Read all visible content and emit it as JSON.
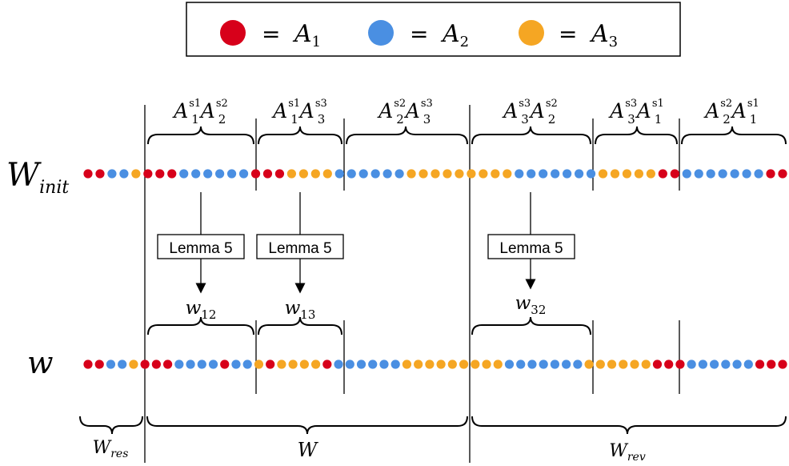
{
  "colors": {
    "A1": "#d7001a",
    "A2": "#4a8fe2",
    "A3": "#f5a623"
  },
  "legend": {
    "items": [
      {
        "symbol": "A",
        "sub": "1",
        "color_key": "A1"
      },
      {
        "symbol": "A",
        "sub": "2",
        "color_key": "A2"
      },
      {
        "symbol": "A",
        "sub": "3",
        "color_key": "A3"
      }
    ],
    "equals": "="
  },
  "rows": {
    "w_init_label": {
      "main": "W",
      "sub": "init"
    },
    "w_label": {
      "main": "w"
    },
    "w_init_seq": "RRBBORRRBBBBBBRRROOOOBBBBBBOOOOOOOOOBBBBBBBOOOOORRBBBBBBBRR",
    "w_seq": "RRBBORRRBBBBRBBOROOOORBBBBBBOOOOOOOOOBBBBBBBOOOOOORRRBBBBBBRRR"
  },
  "segments": [
    {
      "base1": "A",
      "sub1": "1",
      "sup1": "s1",
      "base2": "A",
      "sub2": "2",
      "sup2": "s2"
    },
    {
      "base1": "A",
      "sub1": "1",
      "sup1": "s1",
      "base2": "A",
      "sub2": "3",
      "sup2": "s3"
    },
    {
      "base1": "A",
      "sub1": "2",
      "sup1": "s2",
      "base2": "A",
      "sub2": "3",
      "sup2": "s3"
    },
    {
      "base1": "A",
      "sub1": "3",
      "sup1": "s3",
      "base2": "A",
      "sub2": "2",
      "sup2": "s2"
    },
    {
      "base1": "A",
      "sub1": "3",
      "sup1": "s3",
      "base2": "A",
      "sub2": "1",
      "sup2": "s1"
    },
    {
      "base1": "A",
      "sub1": "2",
      "sup1": "s2",
      "base2": "A",
      "sub2": "1",
      "sup2": "s1"
    }
  ],
  "lemma_label": "Lemma 5",
  "lemma_results": [
    {
      "main": "w",
      "sub": "12"
    },
    {
      "main": "w",
      "sub": "13"
    },
    {
      "main": "w",
      "sub": "32"
    }
  ],
  "bottom_labels": {
    "w_res": {
      "main": "W",
      "sub": "res"
    },
    "w": {
      "main": "W"
    },
    "w_rev": {
      "main": "W",
      "sub": "rev"
    }
  }
}
